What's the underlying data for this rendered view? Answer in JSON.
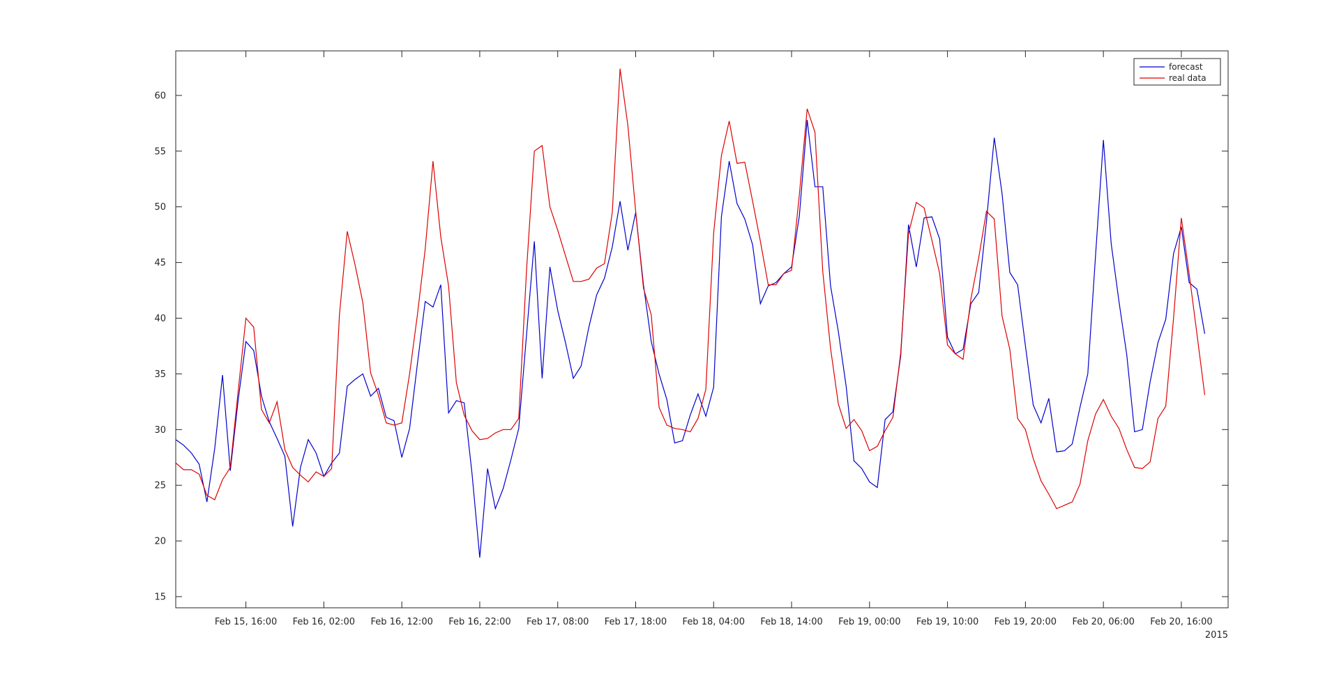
{
  "chart_data": {
    "type": "line",
    "title": "",
    "xlabel": "",
    "ylabel": "",
    "x_unit": "hours since Feb 15, 2015 07:00",
    "xlim": [
      0,
      135
    ],
    "ylim": [
      14,
      64
    ],
    "yticks": [
      15,
      20,
      25,
      30,
      35,
      40,
      45,
      50,
      55,
      60
    ],
    "xticks": [
      {
        "x": 9,
        "label": "Feb 15, 16:00"
      },
      {
        "x": 19,
        "label": "Feb 16, 02:00"
      },
      {
        "x": 29,
        "label": "Feb 16, 12:00"
      },
      {
        "x": 39,
        "label": "Feb 16, 22:00"
      },
      {
        "x": 49,
        "label": "Feb 17, 08:00"
      },
      {
        "x": 59,
        "label": "Feb 17, 18:00"
      },
      {
        "x": 69,
        "label": "Feb 18, 04:00"
      },
      {
        "x": 79,
        "label": "Feb 18, 14:00"
      },
      {
        "x": 89,
        "label": "Feb 19, 00:00"
      },
      {
        "x": 99,
        "label": "Feb 19, 10:00"
      },
      {
        "x": 109,
        "label": "Feb 19, 20:00"
      },
      {
        "x": 119,
        "label": "Feb 20, 06:00"
      },
      {
        "x": 129,
        "label": "Feb 20, 16:00"
      }
    ],
    "year_label": "2015",
    "grid": false,
    "legend_position": "top-right",
    "series": [
      {
        "name": "forecast",
        "color": "#0000cc",
        "values": [
          29.1,
          28.6,
          27.9,
          26.9,
          23.5,
          28.3,
          34.9,
          26.3,
          32.6,
          37.9,
          37.1,
          33.0,
          30.7,
          29.2,
          27.6,
          21.3,
          26.6,
          29.1,
          27.9,
          25.8,
          27.0,
          27.9,
          33.9,
          34.5,
          35.0,
          33.0,
          33.7,
          31.1,
          30.8,
          27.5,
          30.1,
          35.9,
          41.5,
          41.0,
          43.0,
          31.5,
          32.6,
          32.4,
          26.1,
          18.5,
          26.5,
          22.9,
          24.7,
          27.3,
          30.1,
          38.5,
          46.9,
          34.6,
          44.6,
          40.7,
          37.8,
          34.6,
          35.7,
          39.2,
          42.1,
          43.6,
          46.4,
          50.5,
          46.1,
          49.5,
          43.0,
          37.9,
          35.0,
          32.7,
          28.8,
          29.0,
          31.3,
          33.2,
          31.2,
          33.8,
          49.1,
          54.1,
          50.3,
          48.9,
          46.6,
          41.3,
          42.9,
          43.2,
          44.0,
          44.6,
          49.2,
          57.8,
          51.8,
          51.8,
          42.9,
          38.8,
          33.9,
          27.2,
          26.5,
          25.3,
          24.8,
          30.9,
          31.6,
          36.6,
          48.4,
          44.6,
          49.0,
          49.1,
          47.1,
          38.3,
          36.8,
          37.2,
          41.3,
          42.3,
          48.7,
          56.2,
          51.2,
          44.1,
          43.0,
          37.5,
          32.2,
          30.6,
          32.8,
          28.0,
          28.1,
          28.7,
          32.0,
          35.0,
          45.7,
          56.0,
          46.7,
          41.5,
          36.7,
          29.8,
          30.0,
          34.3,
          37.8,
          39.9,
          45.8,
          48.2,
          43.2,
          42.6,
          38.6
        ]
      },
      {
        "name": "real data",
        "color": "#dd0000",
        "values": [
          27.0,
          26.4,
          26.4,
          26.0,
          24.1,
          23.7,
          25.5,
          26.6,
          33.4,
          40.0,
          39.2,
          31.8,
          30.6,
          32.5,
          28.2,
          26.6,
          25.9,
          25.3,
          26.2,
          25.8,
          26.5,
          40.3,
          47.8,
          44.8,
          41.4,
          35.1,
          33.1,
          30.6,
          30.4,
          30.6,
          35.0,
          40.3,
          46.2,
          54.1,
          47.3,
          42.9,
          34.2,
          31.3,
          29.9,
          29.1,
          29.2,
          29.7,
          30.0,
          30.0,
          31.0,
          44.3,
          55.0,
          55.5,
          50.0,
          47.9,
          45.6,
          43.3,
          43.3,
          43.5,
          44.5,
          44.9,
          49.5,
          62.4,
          57.3,
          49.6,
          42.7,
          40.3,
          32.0,
          30.4,
          30.1,
          30.0,
          29.8,
          31.0,
          33.6,
          47.6,
          54.6,
          57.7,
          53.9,
          54.0,
          50.5,
          46.9,
          43.0,
          43.0,
          44.0,
          44.3,
          51.1,
          58.8,
          56.7,
          44.2,
          37.3,
          32.3,
          30.1,
          30.9,
          29.9,
          28.1,
          28.5,
          29.9,
          31.1,
          36.9,
          47.6,
          50.4,
          49.9,
          47.0,
          44.0,
          37.6,
          36.8,
          36.3,
          41.7,
          45.4,
          49.6,
          48.9,
          40.2,
          37.2,
          31.0,
          30.0,
          27.4,
          25.4,
          24.2,
          22.9,
          23.2,
          23.5,
          25.1,
          29.0,
          31.4,
          32.7,
          31.2,
          30.1,
          28.2,
          26.6,
          26.5,
          27.1,
          31.0,
          32.1,
          40.0,
          49.0,
          44.0,
          38.6,
          33.1
        ]
      }
    ]
  }
}
